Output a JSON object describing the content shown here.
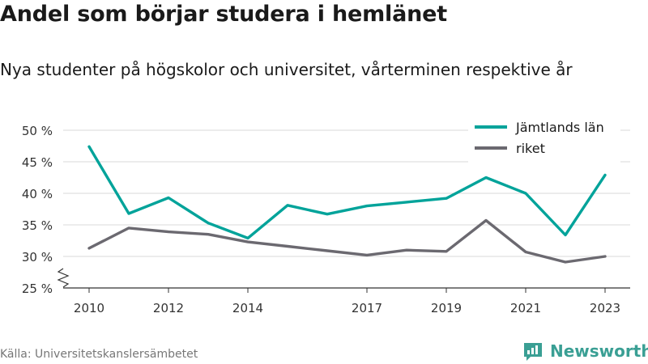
{
  "title": "Andel som börjar studera i hemlänet",
  "subtitle": "Nya studenter på högskolor och universitet, vårterminen respektive år",
  "source": "Källa: Universitetskanslersämbetet",
  "brand": "Newsworthy",
  "colors": {
    "series1": "#00a39a",
    "series2": "#6b6970",
    "grid": "#d9d9d9",
    "axis": "#333333",
    "brand": "#3a9f94"
  },
  "chart_data": {
    "type": "line",
    "x": [
      2010,
      2011,
      2012,
      2013,
      2014,
      2015,
      2016,
      2017,
      2018,
      2019,
      2020,
      2021,
      2022,
      2023
    ],
    "x_tick_labels": [
      "2010",
      "2012",
      "2014",
      "2017",
      "2019",
      "2021",
      "2023"
    ],
    "y_tick_labels": [
      "25 %",
      "30 %",
      "35 %",
      "40 %",
      "45 %",
      "50 %"
    ],
    "ylim": [
      25,
      50
    ],
    "axis_break": true,
    "grid": true,
    "legend_position": "top-right",
    "series": [
      {
        "name": "Jämtlands län",
        "values": [
          47.4,
          36.8,
          39.3,
          35.3,
          32.9,
          38.1,
          36.7,
          38.0,
          38.6,
          39.2,
          42.5,
          40.0,
          33.4,
          42.9
        ]
      },
      {
        "name": "riket",
        "values": [
          31.3,
          34.5,
          33.9,
          33.5,
          32.3,
          31.6,
          30.9,
          30.2,
          31.0,
          30.8,
          35.7,
          30.7,
          29.1,
          30.0
        ]
      }
    ]
  }
}
